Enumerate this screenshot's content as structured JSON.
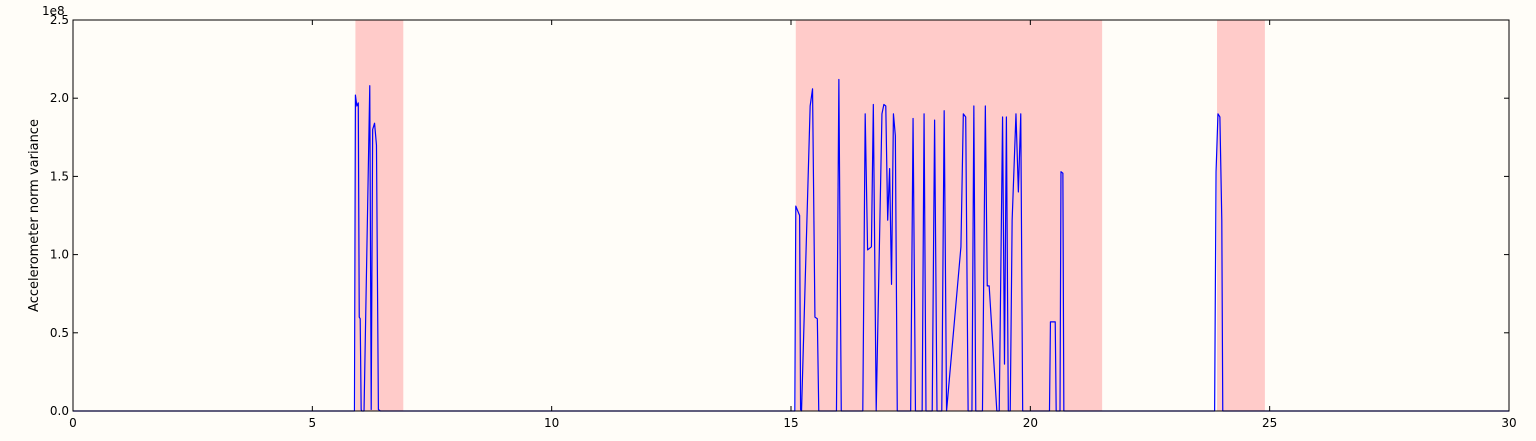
{
  "chart_data": {
    "type": "line",
    "title": "",
    "xlabel": "",
    "ylabel": "Accelerometer norm variance",
    "y_scale_label": "1e8",
    "xlim": [
      0,
      30
    ],
    "ylim": [
      0,
      2.5
    ],
    "x_ticks": [
      0,
      5,
      10,
      15,
      20,
      25,
      30
    ],
    "x_tick_labels": [
      "0",
      "5",
      "10",
      "15",
      "20",
      "25",
      "30"
    ],
    "y_ticks": [
      0,
      0.5,
      1.0,
      1.5,
      2.0,
      2.5
    ],
    "y_tick_labels": [
      "0.0",
      "0.5",
      "1.0",
      "1.5",
      "2.0",
      "2.5"
    ],
    "grid": false,
    "line_color": "#0000ff",
    "shade_color": "#ff9999",
    "shaded_regions": [
      {
        "x_start": 5.9,
        "x_end": 6.9
      },
      {
        "x_start": 15.1,
        "x_end": 21.5
      },
      {
        "x_start": 23.9,
        "x_end": 24.9
      }
    ],
    "series": [
      {
        "x": [
          0,
          5.88,
          5.9,
          5.93,
          5.96,
          5.98,
          6.0,
          6.02,
          6.03,
          6.06,
          6.08,
          6.2,
          6.23,
          6.26,
          6.3,
          6.34,
          6.38,
          6.42,
          6.46,
          6.5,
          6.55,
          15.08,
          15.1,
          15.14,
          15.18,
          15.2,
          15.22,
          15.4,
          15.45,
          15.5,
          15.55,
          15.58,
          15.6,
          15.65,
          15.95,
          16.0,
          16.05,
          16.1,
          16.5,
          16.55,
          16.6,
          16.68,
          16.72,
          16.78,
          16.9,
          16.94,
          16.98,
          17.02,
          17.06,
          17.1,
          17.14,
          17.18,
          17.22,
          17.5,
          17.55,
          17.6,
          17.74,
          17.78,
          17.82,
          17.95,
          18.0,
          18.05,
          18.15,
          18.2,
          18.25,
          18.55,
          18.6,
          18.65,
          18.7,
          18.78,
          18.82,
          18.86,
          19.0,
          19.06,
          19.1,
          19.14,
          19.3,
          19.35,
          19.42,
          19.46,
          19.5,
          19.54,
          19.58,
          19.62,
          19.7,
          19.75,
          19.8,
          19.84,
          19.9,
          20.4,
          20.42,
          20.52,
          20.54,
          20.62,
          20.64,
          20.68,
          20.7,
          23.85,
          23.88,
          23.92,
          23.96,
          24.0,
          24.02,
          24.04,
          30
        ],
        "values": [
          0,
          0,
          2.02,
          1.95,
          1.97,
          0.6,
          0.59,
          0.01,
          0,
          0,
          0,
          2.08,
          0.01,
          1.8,
          1.84,
          1.7,
          0.01,
          0,
          0,
          0,
          0,
          0,
          1.31,
          1.28,
          1.25,
          0.01,
          0,
          1.95,
          2.06,
          0.6,
          0.59,
          0,
          0,
          0,
          0,
          2.12,
          0,
          0,
          0,
          1.9,
          1.03,
          1.05,
          1.96,
          0,
          1.9,
          1.96,
          1.95,
          1.22,
          1.55,
          0.81,
          1.9,
          1.76,
          0,
          0,
          1.87,
          0,
          0,
          1.9,
          0,
          0,
          1.86,
          0,
          0,
          1.92,
          0,
          1.05,
          1.9,
          1.88,
          0,
          0,
          1.95,
          0,
          0,
          1.95,
          0.8,
          0.8,
          0,
          0,
          1.88,
          0.3,
          1.88,
          0,
          0,
          1.22,
          1.9,
          1.4,
          1.9,
          0,
          0,
          0,
          0.57,
          0.57,
          0,
          0,
          1.53,
          1.52,
          0,
          0,
          1.53,
          1.9,
          1.88,
          1.22,
          0,
          0,
          0
        ]
      }
    ]
  }
}
